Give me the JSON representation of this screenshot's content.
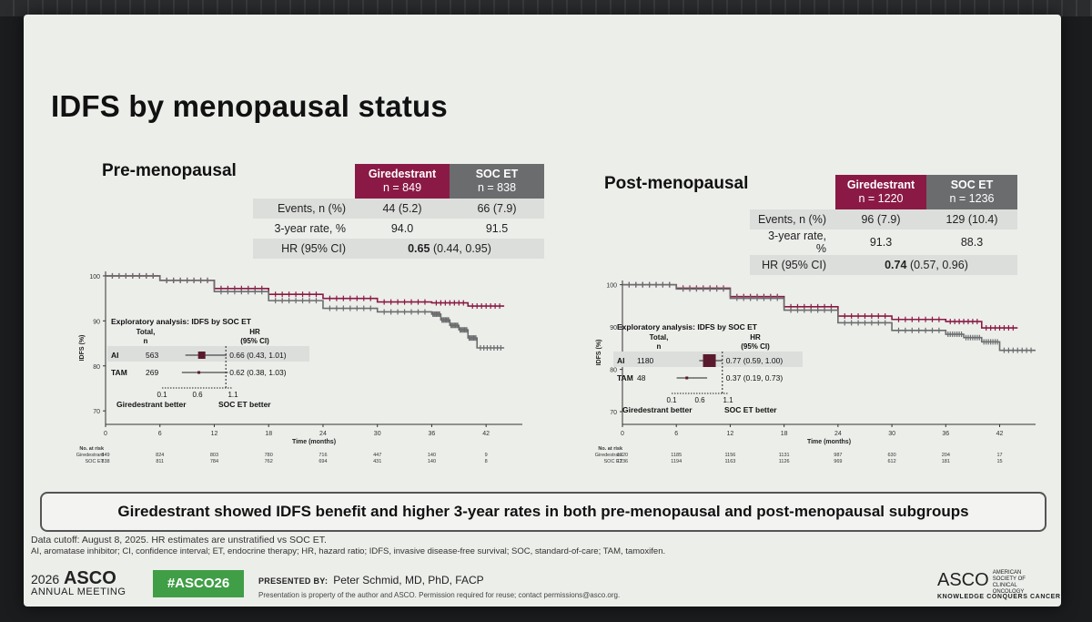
{
  "slide": {
    "title": "IDFS by menopausal status",
    "conclusion": "Giredestrant showed IDFS benefit and higher 3-year rates in both pre-menopausal and post-menopausal subgroups",
    "footnote1": "Data cutoff: August 8, 2025. HR estimates are unstratified vs SOC ET.",
    "footnote2": "AI, aromatase inhibitor; CI, confidence interval; ET, endocrine therapy; HR, hazard ratio; IDFS, invasive disease-free survival; SOC, standard-of-care; TAM, tamoxifen.",
    "meeting_year": "2026",
    "meeting_brand": "ASCO",
    "meeting_sub": "ANNUAL MEETING",
    "hashtag": "#ASCO26",
    "presented_by_label": "PRESENTED BY:",
    "presenter": "Peter Schmid, MD, PhD, FACP",
    "presentation_note": "Presentation is property of the author and ASCO. Permission required for reuse; contact permissions@asco.org.",
    "logo_brand": "ASCO",
    "logo_society": "AMERICAN SOCIETY OF CLINICAL ONCOLOGY",
    "logo_tagline": "KNOWLEDGE CONQUERS CANCER"
  },
  "colors": {
    "giredestrant": "#8a1a45",
    "soc": "#6b6c6e",
    "hashtag": "#3f9e46"
  },
  "pre": {
    "subtitle": "Pre-menopausal",
    "giredestrant": {
      "name": "Giredestrant",
      "n": "n = 849"
    },
    "soc": {
      "name": "SOC ET",
      "n": "n = 838"
    },
    "events_label": "Events, n (%)",
    "events_g": "44 (5.2)",
    "events_s": "66 (7.9)",
    "rate_label": "3-year rate, %",
    "rate_g": "94.0",
    "rate_s": "91.5",
    "hr_label": "HR (95% CI)",
    "hr_bold": "0.65",
    "hr_ci": "(0.44, 0.95)"
  },
  "post": {
    "subtitle": "Post-menopausal",
    "giredestrant": {
      "name": "Giredestrant",
      "n": "n = 1220"
    },
    "soc": {
      "name": "SOC ET",
      "n": "n = 1236"
    },
    "events_label": "Events, n (%)",
    "events_g": "96 (7.9)",
    "events_s": "129 (10.4)",
    "rate_label": "3-year rate, %",
    "rate_g": "91.3",
    "rate_s": "88.3",
    "hr_label": "HR (95% CI)",
    "hr_bold": "0.74",
    "hr_ci": "(0.57, 0.96)"
  },
  "chart_data": [
    {
      "type": "line",
      "panel": "pre",
      "xlabel": "Time (months)",
      "ylabel": "IDFS (%)",
      "xlim": [
        0,
        46
      ],
      "ylim": [
        67,
        101
      ],
      "x_ticks": [
        "0",
        "6",
        "12",
        "18",
        "24",
        "30",
        "36",
        "42"
      ],
      "y_ticks": [
        "70",
        "80",
        "90",
        "100"
      ],
      "series": [
        {
          "name": "Giredestrant",
          "x": [
            0,
            6,
            12,
            18,
            24,
            30,
            36,
            40,
            44
          ],
          "y": [
            100,
            99,
            97.2,
            95.9,
            95.0,
            94.2,
            94.0,
            93.3,
            93.3
          ]
        },
        {
          "name": "SOC ET",
          "x": [
            0,
            6,
            12,
            18,
            24,
            30,
            36,
            37,
            38,
            39,
            40,
            41,
            44
          ],
          "y": [
            100,
            99,
            96.5,
            94.5,
            92.8,
            92.0,
            91.5,
            90.2,
            89.0,
            88.0,
            86.2,
            84.0,
            84.0
          ]
        }
      ],
      "risk_label": "No. at risk",
      "risk_times": [
        0,
        6,
        12,
        18,
        24,
        30,
        36,
        42
      ],
      "risk": [
        {
          "name": "Giredestrant",
          "values": [
            "849",
            "824",
            "803",
            "780",
            "716",
            "447",
            "140",
            "9"
          ]
        },
        {
          "name": "SOC ET",
          "values": [
            "838",
            "811",
            "784",
            "762",
            "694",
            "431",
            "140",
            "8"
          ]
        }
      ],
      "inset": {
        "title": "Exploratory analysis: IDFS by SOC ET",
        "col_total": [
          "Total,",
          "n"
        ],
        "col_hr": [
          "HR",
          "(95% CI)"
        ],
        "rows": [
          {
            "label": "AI",
            "n": "563",
            "hr": 0.66,
            "lo": 0.43,
            "hi": 1.01,
            "text": "0.66 (0.43, 1.01)"
          },
          {
            "label": "TAM",
            "n": "269",
            "hr": 0.62,
            "lo": 0.38,
            "hi": 1.03,
            "text": "0.62 (0.38, 1.03)"
          }
        ],
        "axis_ticks": [
          "0.1",
          "0.6",
          "1.1"
        ],
        "axis_range": [
          0.1,
          1.1
        ],
        "favors_left": "Giredestrant better",
        "favors_right": "SOC ET better"
      }
    },
    {
      "type": "line",
      "panel": "post",
      "xlabel": "Time (months)",
      "ylabel": "IDFS (%)",
      "xlim": [
        0,
        46
      ],
      "ylim": [
        67,
        101
      ],
      "x_ticks": [
        "0",
        "6",
        "12",
        "18",
        "24",
        "30",
        "36",
        "42"
      ],
      "y_ticks": [
        "70",
        "80",
        "90",
        "100"
      ],
      "series": [
        {
          "name": "Giredestrant",
          "x": [
            0,
            6,
            12,
            18,
            24,
            30,
            36,
            40,
            44
          ],
          "y": [
            100,
            99.2,
            97.2,
            94.8,
            92.6,
            91.8,
            91.3,
            89.8,
            89.8
          ]
        },
        {
          "name": "SOC ET",
          "x": [
            0,
            6,
            12,
            18,
            24,
            30,
            36,
            38,
            40,
            42,
            46
          ],
          "y": [
            100,
            99.0,
            96.8,
            94.0,
            91.0,
            89.2,
            88.3,
            87.5,
            86.5,
            84.5,
            84.5
          ]
        }
      ],
      "risk_label": "No. at risk",
      "risk_times": [
        0,
        6,
        12,
        18,
        24,
        30,
        36,
        42
      ],
      "risk": [
        {
          "name": "Giredestrant",
          "values": [
            "1220",
            "1185",
            "1156",
            "1131",
            "987",
            "630",
            "204",
            "17"
          ]
        },
        {
          "name": "SOC ET",
          "values": [
            "1236",
            "1194",
            "1163",
            "1126",
            "969",
            "612",
            "181",
            "15"
          ]
        }
      ],
      "inset": {
        "title": "Exploratory analysis: IDFS by SOC ET",
        "col_total": [
          "Total,",
          "n"
        ],
        "col_hr": [
          "HR",
          "(95% CI)"
        ],
        "rows": [
          {
            "label": "AI",
            "n": "1180",
            "hr": 0.77,
            "lo": 0.59,
            "hi": 1.0,
            "text": "0.77 (0.59, 1.00)"
          },
          {
            "label": "TAM",
            "n": "48",
            "hr": 0.37,
            "lo": 0.19,
            "hi": 0.73,
            "text": "0.37 (0.19, 0.73)"
          }
        ],
        "axis_ticks": [
          "0.1",
          "0.6",
          "1.1"
        ],
        "axis_range": [
          0.1,
          1.1
        ],
        "favors_left": "Giredestrant better",
        "favors_right": "SOC ET better"
      }
    }
  ]
}
